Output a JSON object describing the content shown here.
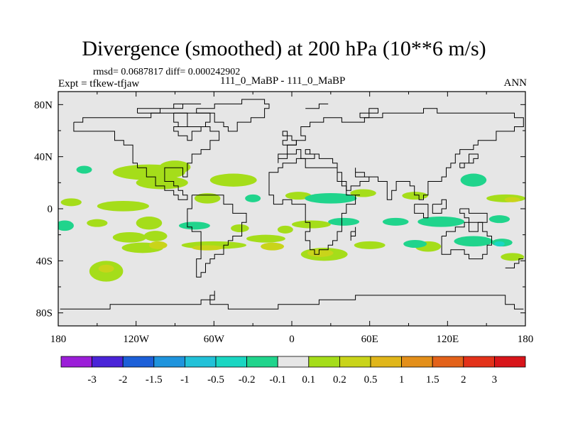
{
  "header": {
    "title": "Divergence (smoothed) at 200 hPa (10**6 m/s)",
    "stats": "rmsd= 0.0687817 diff= 0.000242902",
    "expt": "Expt = tfkew-tfjaw",
    "cases": "111_0_MaBP - 111_0_MaBP",
    "season": "ANN"
  },
  "chart_data": {
    "type": "heatmap",
    "subtype": "filled-contour map",
    "title": "Divergence (smoothed) at 200 hPa (10**6 m/s)",
    "xlim": [
      -180,
      180
    ],
    "ylim": [
      -90,
      90
    ],
    "x_ticks": [
      {
        "value": -180,
        "label": "180"
      },
      {
        "value": -120,
        "label": "120W"
      },
      {
        "value": -60,
        "label": "60W"
      },
      {
        "value": 0,
        "label": "0"
      },
      {
        "value": 60,
        "label": "60E"
      },
      {
        "value": 120,
        "label": "120E"
      },
      {
        "value": 180,
        "label": "180"
      }
    ],
    "y_ticks": [
      {
        "value": 80,
        "label": "80N"
      },
      {
        "value": 40,
        "label": "40N"
      },
      {
        "value": 0,
        "label": "0"
      },
      {
        "value": -40,
        "label": "40S"
      },
      {
        "value": -80,
        "label": "80S"
      }
    ],
    "background_color": "#e6e6e6",
    "colorbar": {
      "labels": [
        "-3",
        "-2",
        "-1.5",
        "-1",
        "-0.5",
        "-0.2",
        "-0.1",
        "0.1",
        "0.2",
        "0.5",
        "1",
        "1.5",
        "2",
        "3"
      ],
      "colors": [
        "#9b1ed8",
        "#4a24d8",
        "#1c5fd8",
        "#1f94dd",
        "#22c1d8",
        "#1ad6c2",
        "#20d48c",
        "#e6e6e6",
        "#a5dd1a",
        "#c9d41a",
        "#e0b61a",
        "#e38f1a",
        "#e3621a",
        "#e3321a",
        "#d8151a"
      ]
    },
    "features": [
      {
        "lon": 105,
        "lat": -29,
        "rlon": 10,
        "rlat": 4,
        "level": 1
      },
      {
        "lon": 162,
        "lat": -26,
        "rlon": 8,
        "rlat": 3,
        "level": -1
      },
      {
        "lon": 170,
        "lat": -37,
        "rlon": 9,
        "rlat": 3,
        "level": 1
      },
      {
        "lon": 160,
        "lat": -27,
        "rlon": 4,
        "rlat": 2,
        "level": -2
      },
      {
        "lon": -143,
        "lat": -48,
        "rlon": 13,
        "rlat": 8,
        "level": 1
      },
      {
        "lon": -143,
        "lat": -46,
        "rlon": 6,
        "rlat": 3,
        "level": 2
      },
      {
        "lon": -125,
        "lat": -22,
        "rlon": 13,
        "rlat": 4,
        "level": 1
      },
      {
        "lon": -105,
        "lat": -21,
        "rlon": 9,
        "rlat": 4,
        "level": 1
      },
      {
        "lon": -115,
        "lat": -30,
        "rlon": 16,
        "rlat": 4,
        "level": 1
      },
      {
        "lon": -103,
        "lat": -28,
        "rlon": 7,
        "rlat": 3,
        "level": 2
      },
      {
        "lon": -60,
        "lat": -28,
        "rlon": 25,
        "rlat": 3,
        "level": 1
      },
      {
        "lon": -65,
        "lat": -30,
        "rlon": 12,
        "rlat": 2,
        "level": 2
      },
      {
        "lon": -20,
        "lat": -23,
        "rlon": 15,
        "rlat": 3,
        "level": 1
      },
      {
        "lon": -15,
        "lat": -29,
        "rlon": 9,
        "rlat": 3,
        "level": 2
      },
      {
        "lon": 25,
        "lat": -35,
        "rlon": 18,
        "rlat": 5,
        "level": 1
      },
      {
        "lon": 22,
        "lat": -34,
        "rlon": 10,
        "rlat": 3,
        "level": 2
      },
      {
        "lon": 60,
        "lat": -28,
        "rlon": 12,
        "rlat": 3,
        "level": 1
      },
      {
        "lon": 95,
        "lat": -27,
        "rlon": 9,
        "rlat": 3,
        "level": -1
      },
      {
        "lon": 140,
        "lat": -25,
        "rlon": 15,
        "rlat": 4,
        "level": -1
      },
      {
        "lon": -175,
        "lat": -13,
        "rlon": 7,
        "rlat": 4,
        "level": -1
      },
      {
        "lon": -150,
        "lat": -11,
        "rlon": 8,
        "rlat": 3,
        "level": 1
      },
      {
        "lon": -110,
        "lat": -11,
        "rlon": 10,
        "rlat": 5,
        "level": 1
      },
      {
        "lon": -75,
        "lat": -13,
        "rlon": 12,
        "rlat": 3,
        "level": -1
      },
      {
        "lon": -40,
        "lat": -15,
        "rlon": 7,
        "rlat": 3,
        "level": 1
      },
      {
        "lon": -5,
        "lat": -16,
        "rlon": 6,
        "rlat": 3,
        "level": 1
      },
      {
        "lon": 15,
        "lat": -12,
        "rlon": 15,
        "rlat": 3,
        "level": 1
      },
      {
        "lon": 40,
        "lat": -10,
        "rlon": 12,
        "rlat": 3,
        "level": -1
      },
      {
        "lon": 80,
        "lat": -10,
        "rlon": 10,
        "rlat": 3,
        "level": -1
      },
      {
        "lon": 115,
        "lat": -10,
        "rlon": 18,
        "rlat": 4,
        "level": -1
      },
      {
        "lon": 160,
        "lat": -8,
        "rlon": 8,
        "rlat": 3,
        "level": -1
      },
      {
        "lon": -170,
        "lat": 5,
        "rlon": 8,
        "rlat": 3,
        "level": 1
      },
      {
        "lon": -130,
        "lat": 2,
        "rlon": 20,
        "rlat": 4,
        "level": 1
      },
      {
        "lon": -160,
        "lat": 30,
        "rlon": 6,
        "rlat": 3,
        "level": -1
      },
      {
        "lon": -110,
        "lat": 28,
        "rlon": 28,
        "rlat": 6,
        "level": 1
      },
      {
        "lon": -100,
        "lat": 20,
        "rlon": 20,
        "rlat": 5,
        "level": 1
      },
      {
        "lon": -90,
        "lat": 32,
        "rlon": 12,
        "rlat": 5,
        "level": 1
      },
      {
        "lon": -45,
        "lat": 22,
        "rlon": 18,
        "rlat": 5,
        "level": 1
      },
      {
        "lon": -65,
        "lat": 8,
        "rlon": 10,
        "rlat": 4,
        "level": 1
      },
      {
        "lon": -30,
        "lat": 8,
        "rlon": 6,
        "rlat": 3,
        "level": -1
      },
      {
        "lon": 5,
        "lat": 10,
        "rlon": 10,
        "rlat": 3,
        "level": 1
      },
      {
        "lon": 30,
        "lat": 8,
        "rlon": 20,
        "rlat": 4,
        "level": -1
      },
      {
        "lon": 55,
        "lat": 12,
        "rlon": 10,
        "rlat": 3,
        "level": 1
      },
      {
        "lon": 95,
        "lat": 10,
        "rlon": 10,
        "rlat": 3,
        "level": 1
      },
      {
        "lon": 140,
        "lat": 22,
        "rlon": 10,
        "rlat": 5,
        "level": -1
      },
      {
        "lon": 165,
        "lat": 8,
        "rlon": 15,
        "rlat": 3,
        "level": 1
      },
      {
        "lon": 170,
        "lat": 7,
        "rlon": 6,
        "rlat": 2,
        "level": 2
      }
    ]
  }
}
